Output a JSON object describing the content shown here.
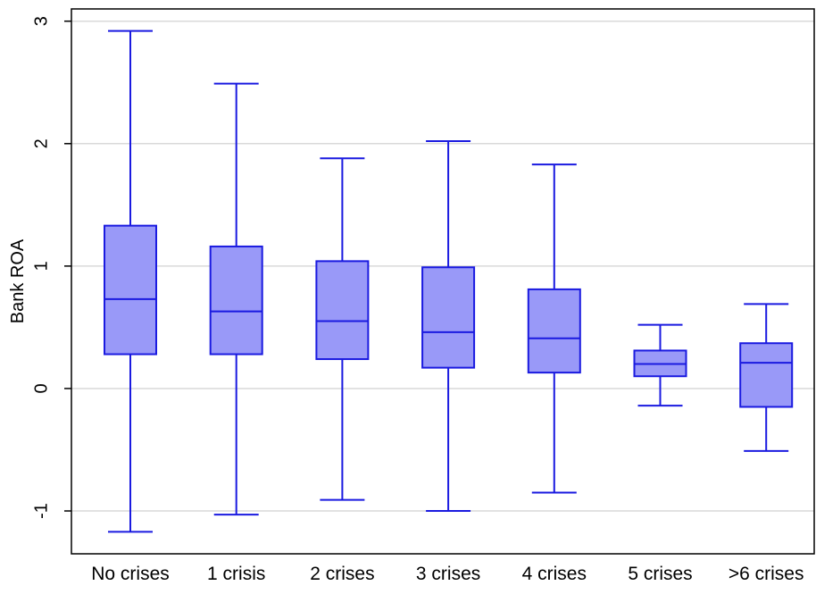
{
  "chart_data": {
    "type": "boxplot",
    "title": "",
    "xlabel": "",
    "ylabel": "Bank ROA",
    "ylim": [
      -1.35,
      3.1
    ],
    "y_ticks": [
      -1,
      0,
      1,
      2,
      3
    ],
    "y_tick_labels": [
      "-1",
      "0",
      "1",
      "2",
      "3"
    ],
    "grid": "horizontal",
    "legend": "none",
    "categories": [
      "No crises",
      "1 crisis",
      "2 crises",
      "3 crises",
      "4 crises",
      "5 crises",
      ">6 crises"
    ],
    "boxes": [
      {
        "category": "No crises",
        "whisker_low": -1.17,
        "q1": 0.28,
        "median": 0.73,
        "q3": 1.33,
        "whisker_high": 2.92
      },
      {
        "category": "1 crisis",
        "whisker_low": -1.03,
        "q1": 0.28,
        "median": 0.63,
        "q3": 1.16,
        "whisker_high": 2.49
      },
      {
        "category": "2 crises",
        "whisker_low": -0.91,
        "q1": 0.24,
        "median": 0.55,
        "q3": 1.04,
        "whisker_high": 1.88
      },
      {
        "category": "3 crises",
        "whisker_low": -1.0,
        "q1": 0.17,
        "median": 0.46,
        "q3": 0.99,
        "whisker_high": 2.02
      },
      {
        "category": "4 crises",
        "whisker_low": -0.85,
        "q1": 0.13,
        "median": 0.41,
        "q3": 0.81,
        "whisker_high": 1.83
      },
      {
        "category": "5 crises",
        "whisker_low": -0.14,
        "q1": 0.1,
        "median": 0.2,
        "q3": 0.31,
        "whisker_high": 0.52
      },
      {
        "category": ">6 crises",
        "whisker_low": -0.51,
        "q1": -0.15,
        "median": 0.21,
        "q3": 0.37,
        "whisker_high": 0.69
      }
    ],
    "colors": {
      "box_fill": "#9999f8",
      "box_stroke": "#1a1ae0",
      "grid": "#d9d9d9",
      "frame": "#000000"
    }
  }
}
